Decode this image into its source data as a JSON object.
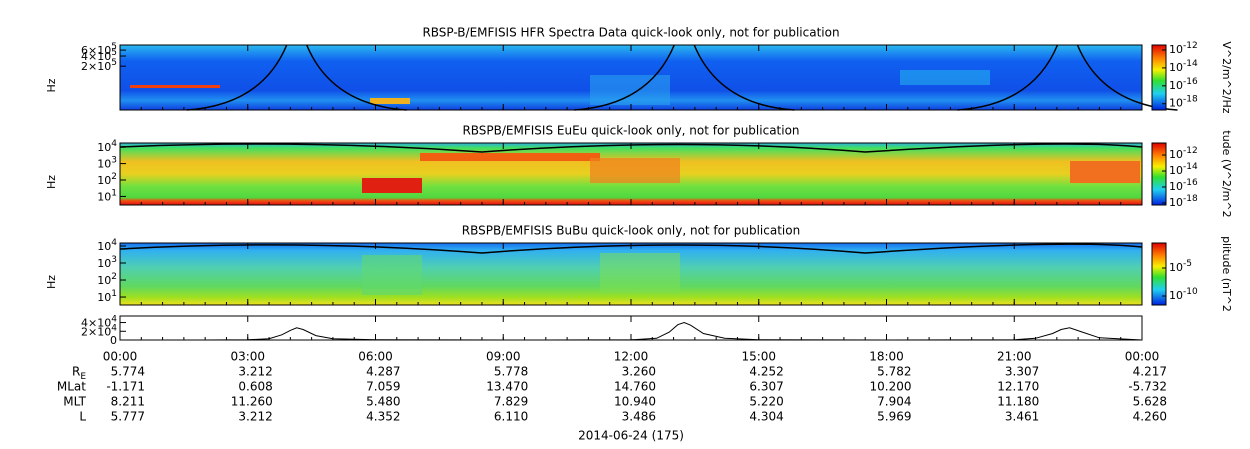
{
  "chart_data": [
    {
      "type": "spectrogram",
      "title": "RBSP-B/EMFISIS  HFR Spectra Data quick-look only, not for publication",
      "ylabel": "Hz",
      "log": true,
      "ylim": [
        10000,
        850000
      ],
      "yticks": [
        {
          "value": 600000,
          "label": "6×10^5"
        },
        {
          "value": 400000,
          "label": "4×10^5"
        },
        {
          "value": 200000,
          "label": "2×10^5"
        }
      ],
      "colorbar_label": "V^2/m^2/Hz",
      "clim": [
        2e-19,
        3.6e-12
      ],
      "cticks": [
        {
          "value": 1e-12,
          "label": "10^-12"
        },
        {
          "value": 1e-14,
          "label": "10^-14"
        },
        {
          "value": 1e-16,
          "label": "10^-16"
        },
        {
          "value": 1e-18,
          "label": "10^-18"
        }
      ]
    },
    {
      "type": "spectrogram",
      "title": "RBSPB/EMFISIS  EuEu quick-look only, not for publication",
      "ylabel": "Hz",
      "log": true,
      "ylim": [
        3,
        18000
      ],
      "yticks": [
        {
          "value": 10000,
          "label": "10^4"
        },
        {
          "value": 1000,
          "label": "10^3"
        },
        {
          "value": 100,
          "label": "10^2"
        },
        {
          "value": 10,
          "label": "10^1"
        }
      ],
      "colorbar_label": "tude (V^2/m^2",
      "clim": [
        5.6e-19,
        3.2e-11
      ],
      "cticks": [
        {
          "value": 1e-12,
          "label": "10^-12"
        },
        {
          "value": 1e-14,
          "label": "10^-14"
        },
        {
          "value": 1e-16,
          "label": "10^-16"
        },
        {
          "value": 1e-18,
          "label": "10^-18"
        }
      ]
    },
    {
      "type": "spectrogram",
      "title": "RBSPB/EMFISIS  BuBu quick-look only, not for publication",
      "ylabel": "Hz",
      "log": true,
      "ylim": [
        3.4,
        15000
      ],
      "yticks": [
        {
          "value": 10000,
          "label": "10^4"
        },
        {
          "value": 1000,
          "label": "10^3"
        },
        {
          "value": 100,
          "label": "10^2"
        },
        {
          "value": 10,
          "label": "10^1"
        }
      ],
      "colorbar_label": "plitude (nT^2",
      "clim": [
        2.5e-12,
        0.29
      ],
      "cticks": [
        {
          "value": 1e-05,
          "label": "10^-5"
        },
        {
          "value": 1e-10,
          "label": "10^-10"
        }
      ]
    },
    {
      "type": "line",
      "ylim": [
        0,
        55000
      ],
      "yticks": [
        {
          "value": 40000,
          "label": "4×10^4"
        },
        {
          "value": 20000,
          "label": "2×10^4"
        },
        0
      ],
      "x": [
        0,
        2,
        3,
        3.5,
        3.8,
        4.0,
        4.15,
        4.3,
        4.6,
        5,
        6,
        10,
        12,
        12.6,
        12.9,
        13.1,
        13.25,
        13.4,
        13.7,
        14.2,
        15,
        18,
        21,
        21.5,
        21.9,
        22.1,
        22.3,
        22.6,
        23,
        24
      ],
      "values": [
        0,
        0,
        500,
        3000,
        12000,
        22000,
        28000,
        24000,
        10000,
        3000,
        500,
        0,
        500,
        4000,
        18000,
        35000,
        40000,
        34000,
        15000,
        4000,
        500,
        0,
        500,
        4000,
        15000,
        24000,
        28000,
        18000,
        5000,
        0
      ],
      "color": "#000000",
      "xlim": [
        0,
        24
      ],
      "xticks": [
        {
          "value": 0,
          "label": "00:00"
        },
        {
          "value": 3,
          "label": "03:00"
        },
        {
          "value": 6,
          "label": "06:00"
        },
        {
          "value": 9,
          "label": "09:00"
        },
        {
          "value": 12,
          "label": "12:00"
        },
        {
          "value": 15,
          "label": "15:00"
        },
        {
          "value": 18,
          "label": "18:00"
        },
        {
          "value": 21,
          "label": "21:00"
        },
        {
          "value": 24,
          "label": "00:00"
        }
      ],
      "xlabel": "2014-06-24 (175)",
      "ephemeris": [
        {
          "label": "R_E",
          "values": [
            "5.774",
            "3.212",
            "4.287",
            "5.778",
            "3.260",
            "4.252",
            "5.782",
            "3.307",
            "4.217"
          ]
        },
        {
          "label": "MLat",
          "values": [
            "-1.171",
            "0.608",
            "7.059",
            "13.470",
            "14.760",
            "6.307",
            "10.200",
            "12.170",
            "-5.732"
          ]
        },
        {
          "label": "MLT",
          "values": [
            "8.211",
            "11.260",
            "5.480",
            "7.829",
            "10.940",
            "5.220",
            "7.904",
            "11.180",
            "5.628"
          ]
        },
        {
          "label": "L",
          "values": [
            "5.777",
            "3.212",
            "4.352",
            "6.110",
            "3.486",
            "4.304",
            "5.969",
            "3.461",
            "4.260"
          ]
        }
      ]
    }
  ]
}
